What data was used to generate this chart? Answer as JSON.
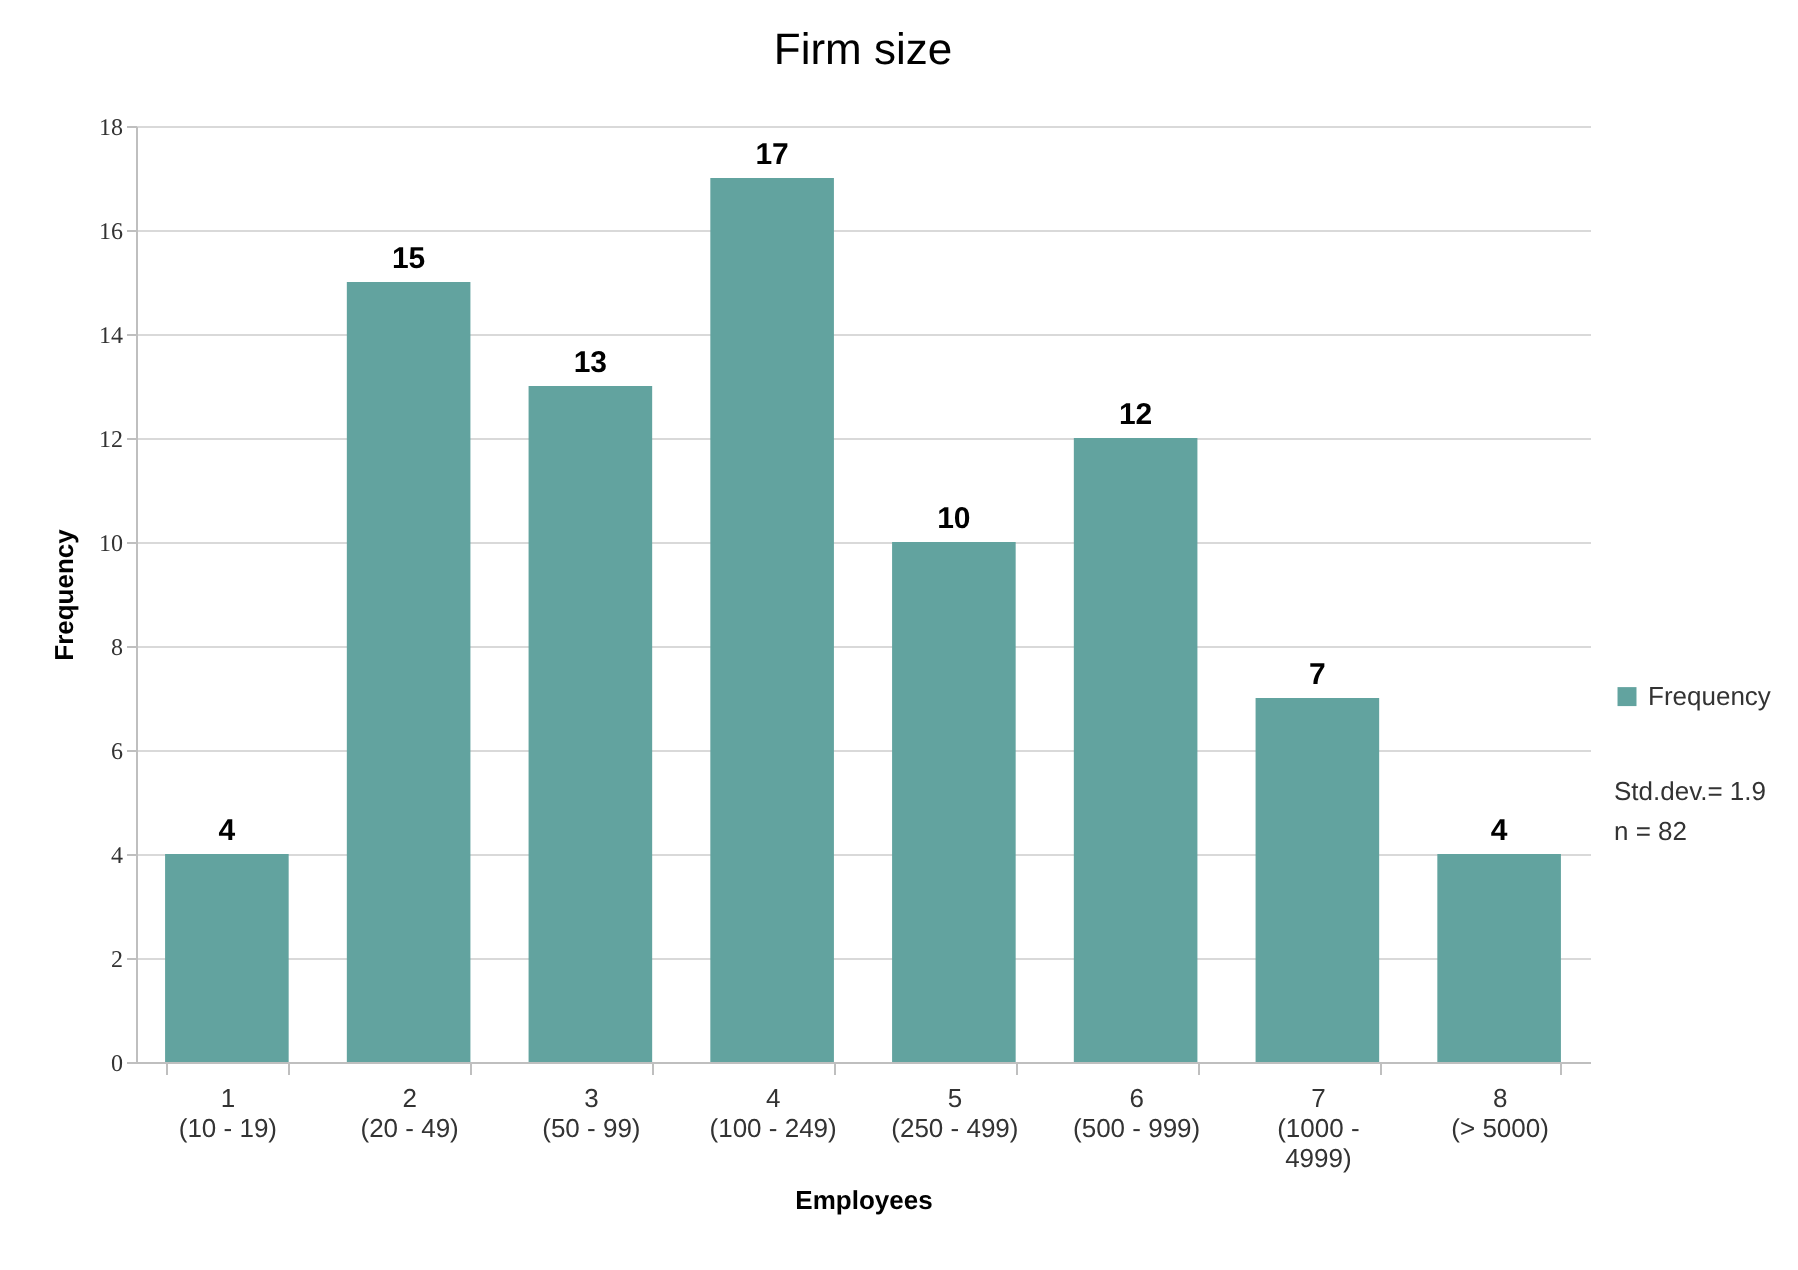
{
  "chart_data": {
    "type": "bar",
    "title": "Firm size",
    "xlabel": "Employees",
    "ylabel": "Frequency",
    "categories": [
      "1\n(10 - 19)",
      "2\n(20 - 49)",
      "3\n(50 - 99)",
      "4\n(100 - 249)",
      "5\n(250 - 499)",
      "6\n(500 - 999)",
      "7\n(1000 -\n4999)",
      "8\n(> 5000)"
    ],
    "series": [
      {
        "name": "Frequency",
        "color": "#62a39f",
        "values": [
          4,
          15,
          13,
          17,
          10,
          12,
          7,
          4
        ]
      }
    ],
    "ylim": [
      0,
      18
    ],
    "yticks": [
      0,
      2,
      4,
      6,
      8,
      10,
      12,
      14,
      16,
      18
    ],
    "grid": "y",
    "legend": "right",
    "data_labels": true,
    "annotations": [
      "Std.dev.= 1.9",
      "n = 82"
    ]
  }
}
